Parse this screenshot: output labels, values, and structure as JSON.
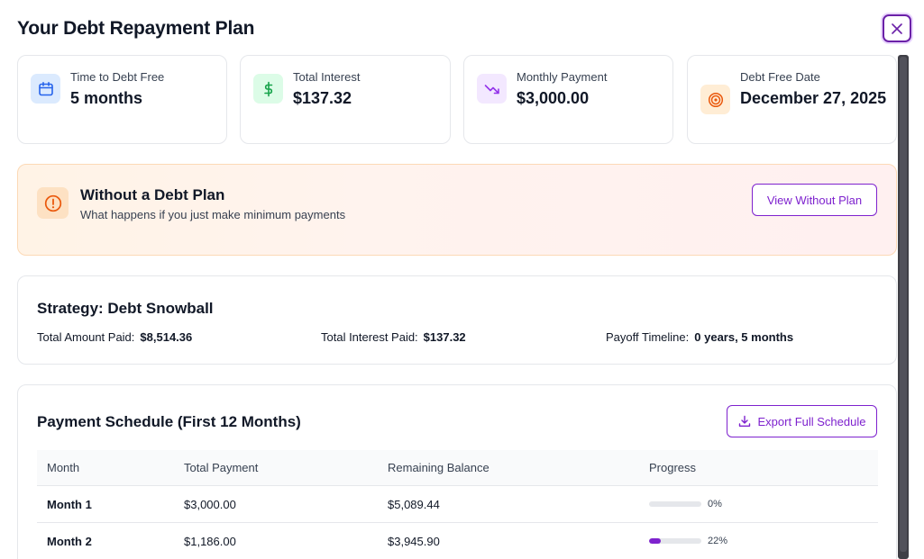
{
  "modal": {
    "title": "Your Debt Repayment Plan"
  },
  "stats": [
    {
      "label": "Time to Debt Free",
      "value": "5 months",
      "icon": "calendar-icon",
      "color": "#2563eb",
      "bg": "#dbeafe"
    },
    {
      "label": "Total Interest",
      "value": "$137.32",
      "icon": "dollar-icon",
      "color": "#16a34a",
      "bg": "#dcfce7"
    },
    {
      "label": "Monthly Payment",
      "value": "$3,000.00",
      "icon": "trending-down-icon",
      "color": "#9333ea",
      "bg": "#f3e8ff"
    },
    {
      "label": "Debt Free Date",
      "value": "December 27, 2025",
      "icon": "target-icon",
      "color": "#ea580c",
      "bg": "#ffedd5"
    }
  ],
  "warning": {
    "title": "Without a Debt Plan",
    "subtitle": "What happens if you just make minimum payments",
    "button": "View Without Plan"
  },
  "strategy": {
    "title": "Strategy: Debt Snowball",
    "items": [
      {
        "label": "Total Amount Paid:",
        "value": "$8,514.36"
      },
      {
        "label": "Total Interest Paid:",
        "value": "$137.32"
      },
      {
        "label": "Payoff Timeline:",
        "value": "0 years, 5 months"
      }
    ]
  },
  "schedule": {
    "title": "Payment Schedule (First 12 Months)",
    "export_button": "Export Full Schedule",
    "columns": [
      "Month",
      "Total Payment",
      "Remaining Balance",
      "Progress"
    ],
    "rows": [
      {
        "month": "Month 1",
        "payment": "$3,000.00",
        "balance": "$5,089.44",
        "progress": 0,
        "progress_label": "0%"
      },
      {
        "month": "Month 2",
        "payment": "$1,186.00",
        "balance": "$3,945.90",
        "progress": 22,
        "progress_label": "22%"
      }
    ]
  },
  "colors": {
    "accent": "#7e22ce"
  }
}
